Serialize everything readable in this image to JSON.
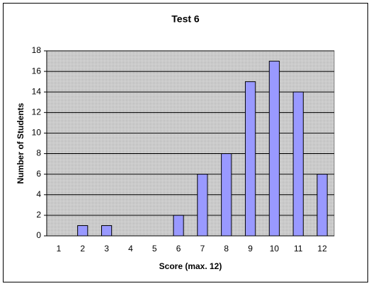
{
  "chart_data": {
    "type": "bar",
    "title": "Test 6",
    "x_label": "Score (max. 12)",
    "y_label": "Number of Students",
    "categories": [
      "1",
      "2",
      "3",
      "4",
      "5",
      "6",
      "7",
      "8",
      "9",
      "10",
      "11",
      "12"
    ],
    "values": [
      0,
      1,
      1,
      0,
      0,
      2,
      6,
      8,
      15,
      17,
      14,
      6
    ],
    "color": "#9999ff",
    "ylim": [
      0,
      18
    ],
    "yticks": [
      0,
      2,
      4,
      6,
      8,
      10,
      12,
      14,
      16,
      18
    ],
    "grid": true
  }
}
